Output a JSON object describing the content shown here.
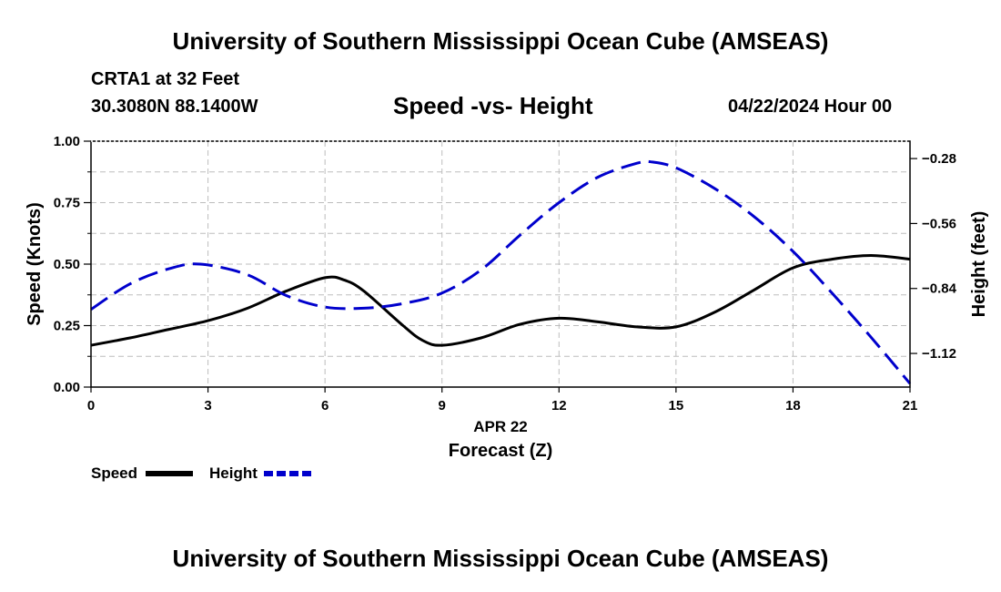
{
  "header": {
    "banner_top": "University of Southern Mississippi Ocean Cube (AMSEAS)",
    "banner_bottom": "University of Southern Mississippi Ocean Cube (AMSEAS)",
    "station": "CRTA1 at 32 Feet",
    "coordinates": "30.3080N  88.1400W",
    "datetime": "04/22/2024 Hour 00"
  },
  "chart_data": {
    "type": "line",
    "title": "Speed -vs- Height",
    "xlabel": "Forecast (Z)",
    "xdate_label": "APR 22",
    "ylabel": "Speed (Knots)",
    "y2label": "Height (feet)",
    "xlim": [
      0,
      21
    ],
    "ylim": [
      0,
      1.0
    ],
    "y2lim": [
      -1.265,
      -0.205
    ],
    "x_ticks": [
      0,
      3,
      6,
      9,
      12,
      15,
      18,
      21
    ],
    "y_ticks": [
      0.0,
      0.25,
      0.5,
      0.75,
      1.0
    ],
    "y_tick_labels": [
      "0.00",
      "0.25",
      "0.50",
      "0.75",
      "1.00"
    ],
    "y2_ticks": [
      -0.28,
      -0.56,
      -0.84,
      -1.12
    ],
    "y2_tick_labels": [
      "−0.28",
      "−0.56",
      "−0.84",
      "−1.12"
    ],
    "grid": true,
    "legend_position": "bottom-left",
    "series": [
      {
        "name": "Speed",
        "axis": "left",
        "color": "#000000",
        "dash": "solid",
        "x": [
          0,
          1,
          2,
          3,
          4,
          5,
          6,
          6.5,
          7,
          8,
          8.5,
          9,
          10,
          11,
          12,
          13,
          14,
          15,
          16,
          17,
          18,
          19,
          20,
          21
        ],
        "values": [
          0.17,
          0.2,
          0.235,
          0.27,
          0.32,
          0.39,
          0.445,
          0.435,
          0.39,
          0.25,
          0.19,
          0.17,
          0.2,
          0.255,
          0.28,
          0.265,
          0.245,
          0.245,
          0.305,
          0.395,
          0.485,
          0.52,
          0.535,
          0.52
        ]
      },
      {
        "name": "Height",
        "axis": "right",
        "color": "#0000cc",
        "dash": "dashed",
        "x": [
          0,
          1,
          2,
          2.8,
          4,
          5,
          6,
          7,
          8,
          9,
          10,
          11,
          12,
          13,
          14,
          14.4,
          15,
          16,
          17,
          18,
          19,
          20,
          21
        ],
        "values": [
          -0.93,
          -0.82,
          -0.755,
          -0.735,
          -0.78,
          -0.87,
          -0.92,
          -0.925,
          -0.905,
          -0.86,
          -0.76,
          -0.61,
          -0.47,
          -0.36,
          -0.3,
          -0.295,
          -0.32,
          -0.41,
          -0.53,
          -0.68,
          -0.86,
          -1.05,
          -1.25
        ]
      }
    ]
  }
}
